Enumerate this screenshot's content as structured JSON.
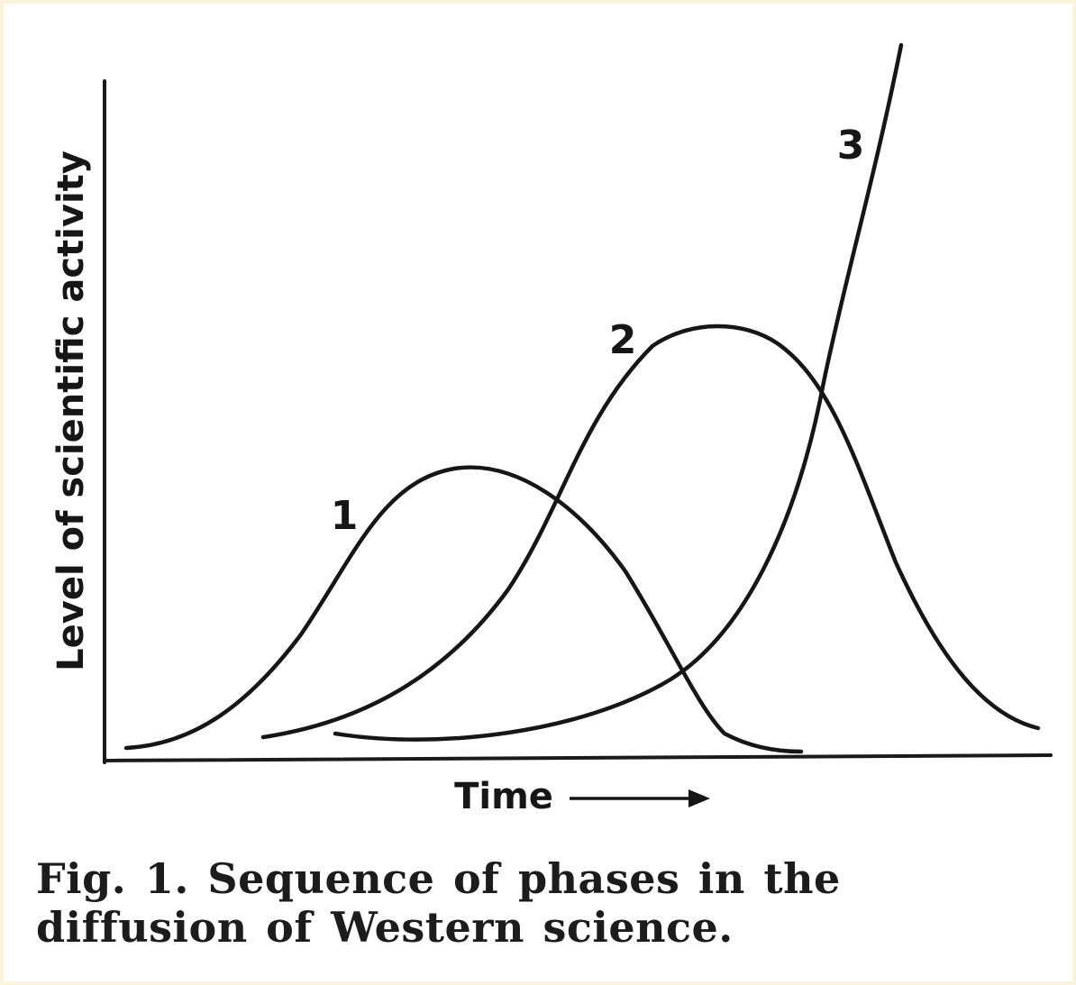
{
  "figure": {
    "ylabel": "Level of scientific activity",
    "xlabel": "Time",
    "xlabel_arrow": "→",
    "caption": "Fig. 1. Sequence of phases in the diffusion of Western science.",
    "curves": [
      {
        "label": "1"
      },
      {
        "label": "2"
      },
      {
        "label": "3"
      }
    ]
  }
}
